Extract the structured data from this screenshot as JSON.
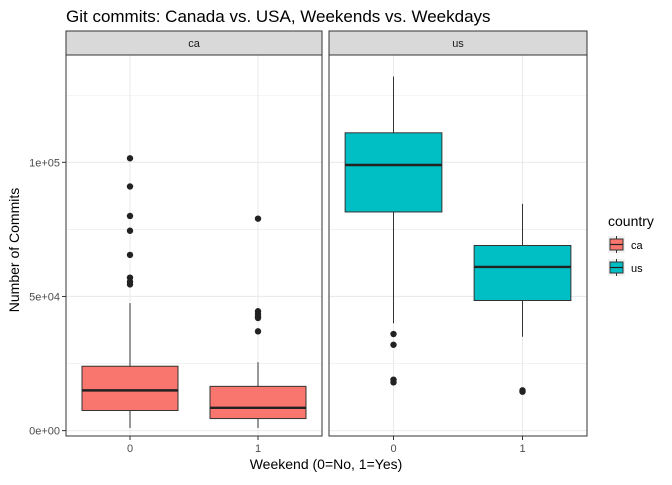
{
  "chart_data": {
    "type": "boxplot",
    "title": "Git commits: Canada vs. USA, Weekends vs. Weekdays",
    "xlabel": "Weekend (0=No, 1=Yes)",
    "ylabel": "Number of Commits",
    "ylim": [
      -2000,
      140000
    ],
    "yticks": [
      {
        "value": 0,
        "label": "0e+00"
      },
      {
        "value": 50000,
        "label": "5e+04"
      },
      {
        "value": 100000,
        "label": "1e+05"
      }
    ],
    "categories": [
      "0",
      "1"
    ],
    "grid": true,
    "legend": {
      "title": "country",
      "placement": "right",
      "entries": [
        {
          "label": "ca",
          "color": "#F8766D"
        },
        {
          "label": "us",
          "color": "#00BFC4"
        }
      ]
    },
    "colors": {
      "ca": "#F8766D",
      "us": "#00BFC4",
      "strip": "#D9D9D9",
      "grid": "#EBEBEB",
      "border": "#333333"
    },
    "panels": [
      {
        "strip": "ca",
        "color": "#F8766D",
        "boxes": [
          {
            "category": "0",
            "whisker_low": 1000,
            "q1": 7500,
            "median": 15000,
            "q3": 24000,
            "whisker_high": 47500,
            "outliers": [
              101500,
              91000,
              80000,
              74500,
              65500,
              57000,
              55500,
              54500
            ]
          },
          {
            "category": "1",
            "whisker_low": 1000,
            "q1": 4500,
            "median": 8500,
            "q3": 16500,
            "whisker_high": 25500,
            "outliers": [
              79000,
              44500,
              43500,
              42500,
              42000,
              37000
            ]
          }
        ]
      },
      {
        "strip": "us",
        "color": "#00BFC4",
        "boxes": [
          {
            "category": "0",
            "whisker_low": 40000,
            "q1": 81500,
            "median": 99000,
            "q3": 111000,
            "whisker_high": 132000,
            "outliers": [
              36000,
              32000,
              19000,
              18000
            ]
          },
          {
            "category": "1",
            "whisker_low": 35000,
            "q1": 48500,
            "median": 61000,
            "q3": 69000,
            "whisker_high": 84500,
            "outliers": [
              15000,
              14500
            ]
          }
        ]
      }
    ]
  }
}
